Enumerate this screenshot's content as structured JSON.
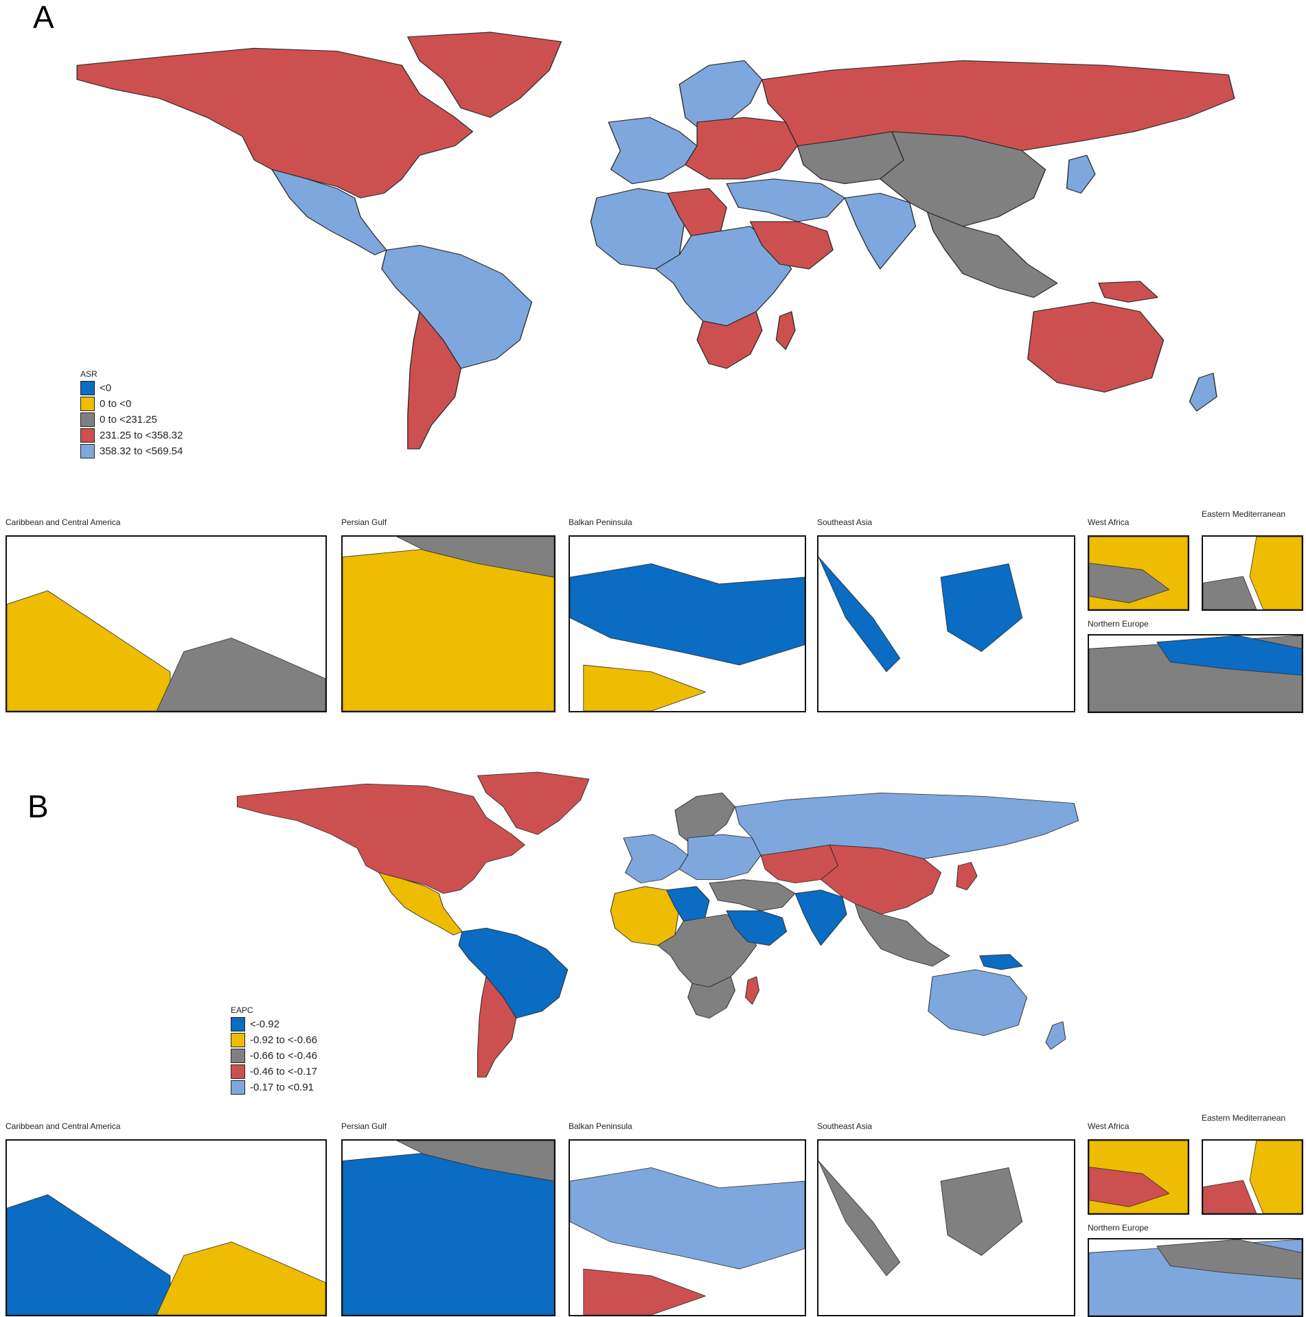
{
  "colors": {
    "blue": "#0a6cc2",
    "yellow": "#eebc00",
    "gray": "#808080",
    "red": "#cd5050",
    "lightblue": "#7ea7dd"
  },
  "panelA": {
    "letter": "A",
    "legend": {
      "title": "ASR",
      "items": [
        {
          "label": "<0",
          "color": "#0a6cc2"
        },
        {
          "label": "0 to <0",
          "color": "#eebc00"
        },
        {
          "label": "0 to <231.25",
          "color": "#808080"
        },
        {
          "label": "231.25 to <358.32",
          "color": "#cd5050"
        },
        {
          "label": "358.32 to <569.54",
          "color": "#7ea7dd"
        }
      ]
    },
    "regions": {
      "north_america": "red",
      "greenland": "red",
      "mexico_central": "lightblue",
      "south_america_north": "lightblue",
      "southern_cone": "red",
      "europe_west": "lightblue",
      "scandinavia": "lightblue",
      "europe_east": "red",
      "russia": "red",
      "north_africa_west": "lightblue",
      "libya": "red",
      "africa_central": "lightblue",
      "southern_africa": "red",
      "madagascar": "red",
      "middle_east": "lightblue",
      "arabia": "red",
      "india": "lightblue",
      "china_mongolia": "gray",
      "central_asia": "gray",
      "southeast_asia": "gray",
      "japan": "lightblue",
      "australia": "red",
      "new_zealand": "lightblue",
      "png": "red"
    },
    "insets": [
      {
        "title": "Caribbean and Central America",
        "main": "yellow",
        "alt": "gray"
      },
      {
        "title": "Persian Gulf",
        "main": "yellow",
        "alt": "gray"
      },
      {
        "title": "Balkan Peninsula",
        "main": "blue",
        "alt": "yellow"
      },
      {
        "title": "Southeast Asia",
        "main": "blue",
        "alt": "blue"
      },
      {
        "title": "West Africa",
        "main": "yellow",
        "alt": "gray"
      },
      {
        "title": "Eastern Mediterranean",
        "main": "yellow",
        "alt": "gray"
      },
      {
        "title": "Northern Europe",
        "main": "gray",
        "alt": "blue"
      }
    ]
  },
  "panelB": {
    "letter": "B",
    "legend": {
      "title": "EAPC",
      "items": [
        {
          "label": "<-0.92",
          "color": "#0a6cc2"
        },
        {
          "label": "-0.92 to <-0.66",
          "color": "#eebc00"
        },
        {
          "label": "-0.66 to <-0.46",
          "color": "#808080"
        },
        {
          "label": "-0.46 to <-0.17",
          "color": "#cd5050"
        },
        {
          "label": "-0.17 to <0.91",
          "color": "#7ea7dd"
        }
      ]
    },
    "regions": {
      "north_america": "red",
      "greenland": "red",
      "mexico_central": "yellow",
      "south_america_north": "blue",
      "southern_cone": "red",
      "europe_west": "lightblue",
      "scandinavia": "gray",
      "europe_east": "lightblue",
      "russia": "lightblue",
      "north_africa_west": "yellow",
      "libya": "blue",
      "africa_central": "gray",
      "southern_africa": "gray",
      "madagascar": "red",
      "middle_east": "gray",
      "arabia": "blue",
      "india": "blue",
      "china_mongolia": "red",
      "central_asia": "red",
      "southeast_asia": "gray",
      "japan": "red",
      "australia": "lightblue",
      "new_zealand": "lightblue",
      "png": "blue"
    },
    "insets": [
      {
        "title": "Caribbean and Central America",
        "main": "blue",
        "alt": "yellow"
      },
      {
        "title": "Persian Gulf",
        "main": "blue",
        "alt": "gray"
      },
      {
        "title": "Balkan Peninsula",
        "main": "lightblue",
        "alt": "red"
      },
      {
        "title": "Southeast Asia",
        "main": "gray",
        "alt": "gray"
      },
      {
        "title": "West Africa",
        "main": "yellow",
        "alt": "red"
      },
      {
        "title": "Eastern Mediterranean",
        "main": "yellow",
        "alt": "red"
      },
      {
        "title": "Northern Europe",
        "main": "lightblue",
        "alt": "gray"
      }
    ]
  }
}
